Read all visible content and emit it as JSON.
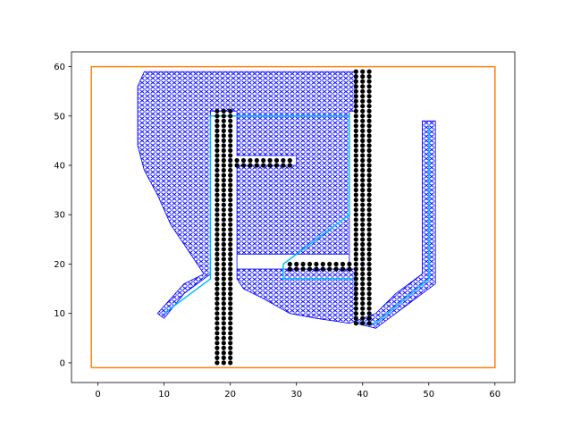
{
  "chart_data": {
    "type": "scatter",
    "title": "",
    "xlabel": "",
    "ylabel": "",
    "xlim": [
      -4,
      63
    ],
    "ylim": [
      -4,
      63
    ],
    "xticks": [
      0,
      10,
      20,
      30,
      40,
      50,
      60
    ],
    "yticks": [
      0,
      10,
      20,
      30,
      40,
      50,
      60
    ],
    "grid": false,
    "legend": "none",
    "colors": {
      "boundary": "#ff7f0e",
      "explored": "#0000ff",
      "path": "#00bfff",
      "obstacle": "#000000"
    },
    "series": [
      {
        "kind": "boundary-rectangle",
        "x": [
          -1,
          60,
          60,
          -1,
          -1
        ],
        "y": [
          -1,
          -1,
          60,
          60,
          -1
        ]
      },
      {
        "kind": "obstacles",
        "segments": [
          {
            "x": [
              18,
              20
            ],
            "y": [
              0,
              51
            ]
          },
          {
            "x": [
              21,
              29
            ],
            "y": [
              40,
              41
            ]
          },
          {
            "x": [
              29,
              38
            ],
            "y": [
              19,
              20
            ]
          },
          {
            "x": [
              39,
              41
            ],
            "y": [
              8,
              59
            ]
          }
        ]
      },
      {
        "kind": "explored",
        "outline": [
          [
            6,
            56
          ],
          [
            7,
            59
          ],
          [
            39,
            59
          ],
          [
            39,
            51
          ],
          [
            38,
            51
          ],
          [
            38,
            19
          ],
          [
            39,
            19
          ],
          [
            39,
            8
          ],
          [
            42,
            7
          ],
          [
            51,
            16
          ],
          [
            51,
            49
          ],
          [
            49,
            49
          ],
          [
            49,
            18
          ],
          [
            45,
            14
          ],
          [
            42,
            10
          ],
          [
            38,
            8
          ],
          [
            33,
            9
          ],
          [
            29,
            10
          ],
          [
            25,
            13
          ],
          [
            22,
            15
          ],
          [
            21,
            17
          ],
          [
            21,
            40
          ],
          [
            30,
            40
          ],
          [
            30,
            42
          ],
          [
            21,
            42
          ],
          [
            21,
            51
          ],
          [
            17,
            51
          ],
          [
            17,
            18
          ],
          [
            13,
            14
          ],
          [
            10,
            9
          ],
          [
            9,
            10
          ],
          [
            13,
            16
          ],
          [
            16,
            18
          ],
          [
            14,
            22
          ],
          [
            11,
            28
          ],
          [
            9,
            34
          ],
          [
            7,
            39
          ],
          [
            6,
            44
          ]
        ],
        "holes": [
          [
            [
              21,
              19
            ],
            [
              29,
              19
            ],
            [
              38,
              19
            ],
            [
              38,
              22
            ],
            [
              29,
              22
            ],
            [
              21,
              22
            ]
          ]
        ]
      },
      {
        "kind": "path",
        "x": [
          10,
          17,
          17,
          38,
          38,
          28,
          28,
          39,
          39,
          42,
          50,
          50
        ],
        "y": [
          10,
          17,
          50,
          50,
          30,
          20,
          17,
          17,
          8,
          8,
          17,
          48
        ]
      }
    ]
  }
}
